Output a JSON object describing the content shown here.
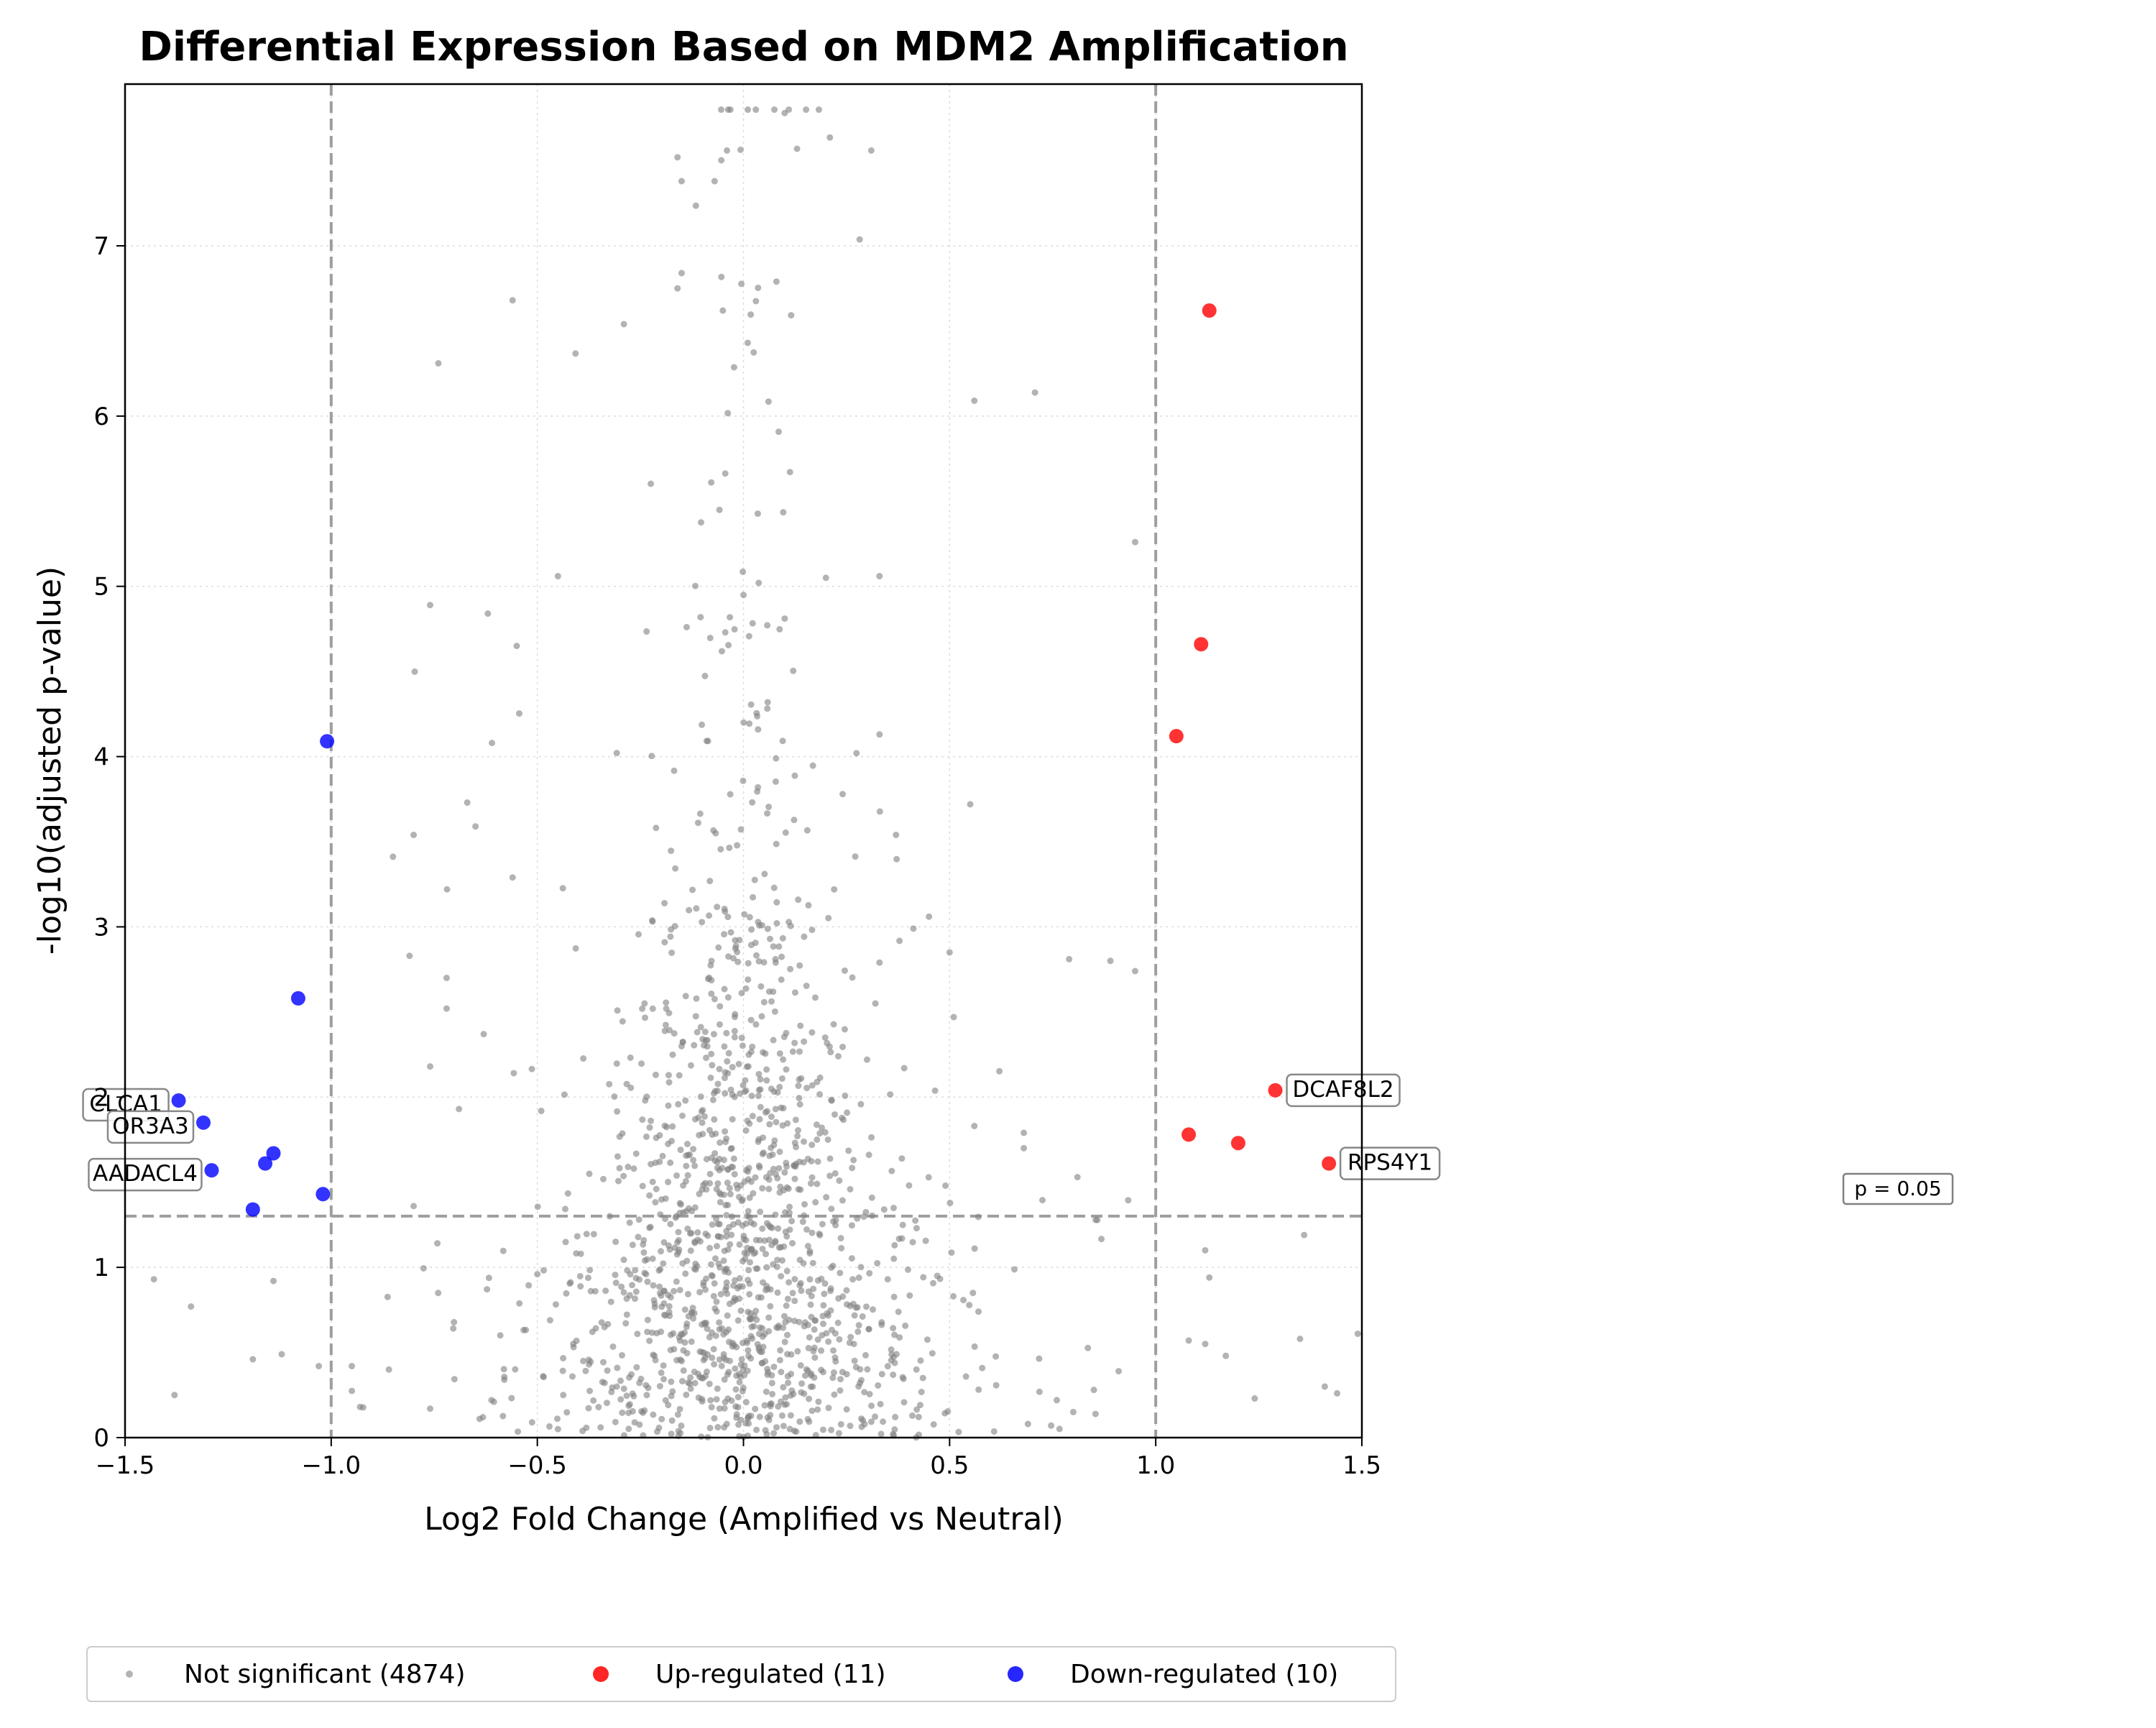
{
  "chart_data": {
    "type": "scatter",
    "title": "Differential Expression Based on MDM2 Amplification",
    "xlabel": "Log2 Fold Change (Amplified vs Neutral)",
    "ylabel": "-log10(adjusted p-value)",
    "xlim": [
      -1.5,
      1.5
    ],
    "ylim": [
      0,
      7.95
    ],
    "xticks": [
      -1.5,
      -1.0,
      -0.5,
      0.0,
      0.5,
      1.0,
      1.5
    ],
    "xtick_labels": [
      "−1.5",
      "−1.0",
      "−0.5",
      "0.0",
      "0.5",
      "1.0",
      "1.5"
    ],
    "yticks": [
      0,
      1,
      2,
      3,
      4,
      5,
      6,
      7
    ],
    "ytick_labels": [
      "0",
      "1",
      "2",
      "3",
      "4",
      "5",
      "6",
      "7"
    ],
    "grid": true,
    "legend_position": "bottom",
    "thresholds": {
      "fold_change": [
        -1.0,
        1.0
      ],
      "pvalue_line_y": 1.301,
      "pvalue_label": "p = 0.05"
    },
    "series": [
      {
        "name": "Not significant (4874)",
        "color": "#808080",
        "count": 4874,
        "points_description": "dense volcano-shaped cloud centered on x=0; representative subset drawn",
        "points": [
          {
            "x": -0.56,
            "y": 6.68
          },
          {
            "x": -0.74,
            "y": 6.31
          },
          {
            "x": -0.29,
            "y": 6.54
          },
          {
            "x": -0.16,
            "y": 6.75
          },
          {
            "x": -0.15,
            "y": 6.84
          },
          {
            "x": -0.05,
            "y": 6.62
          },
          {
            "x": 0.08,
            "y": 6.79
          },
          {
            "x": 0.56,
            "y": 6.09
          },
          {
            "x": -0.15,
            "y": 7.38
          },
          {
            "x": -0.07,
            "y": 7.38
          },
          {
            "x": 0.31,
            "y": 7.56
          },
          {
            "x": -0.16,
            "y": 7.52
          },
          {
            "x": 0.13,
            "y": 7.57
          },
          {
            "x": 0.03,
            "y": 7.8
          },
          {
            "x": 0.1,
            "y": 7.78
          },
          {
            "x": -0.04,
            "y": 7.56
          },
          {
            "x": 0.95,
            "y": 5.26
          },
          {
            "x": 0.2,
            "y": 5.05
          },
          {
            "x": 0.33,
            "y": 5.06
          },
          {
            "x": -0.76,
            "y": 4.89
          },
          {
            "x": -0.62,
            "y": 4.84
          },
          {
            "x": -0.45,
            "y": 5.06
          },
          {
            "x": -0.55,
            "y": 4.65
          },
          {
            "x": 0.33,
            "y": 4.13
          },
          {
            "x": -0.61,
            "y": 4.08
          },
          {
            "x": 0.55,
            "y": 3.72
          },
          {
            "x": -0.8,
            "y": 3.54
          },
          {
            "x": -0.65,
            "y": 3.59
          },
          {
            "x": -0.67,
            "y": 3.73
          },
          {
            "x": 0.37,
            "y": 3.54
          },
          {
            "x": 0.22,
            "y": 3.22
          },
          {
            "x": -0.56,
            "y": 3.29
          },
          {
            "x": 0.45,
            "y": 3.06
          },
          {
            "x": 0.5,
            "y": 2.85
          },
          {
            "x": -0.81,
            "y": 2.83
          },
          {
            "x": 0.89,
            "y": 2.8
          },
          {
            "x": 0.79,
            "y": 2.81
          },
          {
            "x": 0.95,
            "y": 2.74
          },
          {
            "x": 0.33,
            "y": 2.79
          },
          {
            "x": -0.72,
            "y": 2.7
          },
          {
            "x": -0.72,
            "y": 2.52
          },
          {
            "x": 0.32,
            "y": 2.55
          },
          {
            "x": -0.63,
            "y": 2.37
          },
          {
            "x": 0.51,
            "y": 2.47
          },
          {
            "x": -0.76,
            "y": 2.18
          },
          {
            "x": 0.23,
            "y": 2.24
          },
          {
            "x": 0.39,
            "y": 2.17
          },
          {
            "x": -0.69,
            "y": 1.93
          },
          {
            "x": 0.56,
            "y": 1.83
          },
          {
            "x": 0.68,
            "y": 1.79
          },
          {
            "x": 0.68,
            "y": 1.7
          },
          {
            "x": 0.81,
            "y": 1.53
          },
          {
            "x": 0.49,
            "y": 1.48
          },
          {
            "x": -0.8,
            "y": 1.36
          },
          {
            "x": 1.36,
            "y": 1.19
          },
          {
            "x": 1.12,
            "y": 1.1
          },
          {
            "x": 1.13,
            "y": 0.94
          },
          {
            "x": -1.43,
            "y": 0.93
          },
          {
            "x": -1.34,
            "y": 0.77
          },
          {
            "x": -1.14,
            "y": 0.92
          },
          {
            "x": -1.12,
            "y": 0.49
          },
          {
            "x": -1.19,
            "y": 0.46
          },
          {
            "x": -1.38,
            "y": 0.25
          },
          {
            "x": -1.03,
            "y": 0.42
          },
          {
            "x": -0.95,
            "y": 0.42
          },
          {
            "x": 0.91,
            "y": 0.39
          },
          {
            "x": 1.08,
            "y": 0.57
          },
          {
            "x": 1.12,
            "y": 0.55
          },
          {
            "x": 1.24,
            "y": 0.23
          },
          {
            "x": 1.35,
            "y": 0.58
          },
          {
            "x": 1.41,
            "y": 0.3
          },
          {
            "x": 1.44,
            "y": 0.26
          },
          {
            "x": 1.49,
            "y": 0.61
          },
          {
            "x": 1.17,
            "y": 0.48
          },
          {
            "x": 0.8,
            "y": 0.15
          },
          {
            "x": 0.69,
            "y": 0.08
          },
          {
            "x": 0.76,
            "y": 0.22
          },
          {
            "x": 0.85,
            "y": 0.28
          },
          {
            "x": -0.93,
            "y": 0.18
          },
          {
            "x": -0.86,
            "y": 0.4
          },
          {
            "x": -0.76,
            "y": 0.17
          },
          {
            "x": -0.64,
            "y": 0.11
          },
          {
            "x": -0.58,
            "y": 0.34
          },
          {
            "x": -0.45,
            "y": 0.05
          },
          {
            "x": 0.28,
            "y": 0.66
          },
          {
            "x": 0.35,
            "y": 0.93
          },
          {
            "x": 0.47,
            "y": 0.95
          },
          {
            "x": 0.57,
            "y": 0.74
          },
          {
            "x": -0.37,
            "y": 0.86
          },
          {
            "x": -0.5,
            "y": 0.96
          },
          {
            "x": -0.31,
            "y": 1.15
          },
          {
            "x": 0.42,
            "y": 1.23
          },
          {
            "x": -0.28,
            "y": 1.59
          },
          {
            "x": 0.19,
            "y": 1.82
          },
          {
            "x": -0.24,
            "y": 2.55
          },
          {
            "x": 0.14,
            "y": 2.11
          }
        ]
      },
      {
        "name": "Up-regulated (11)",
        "color": "#ff0000",
        "count": 11,
        "points": [
          {
            "x": 1.13,
            "y": 6.62
          },
          {
            "x": 1.11,
            "y": 4.66
          },
          {
            "x": 1.05,
            "y": 4.12
          },
          {
            "x": 1.29,
            "y": 2.04
          },
          {
            "x": 1.08,
            "y": 1.78
          },
          {
            "x": 1.2,
            "y": 1.73
          },
          {
            "x": 1.42,
            "y": 1.61
          }
        ]
      },
      {
        "name": "Down-regulated (10)",
        "color": "#0000ff",
        "count": 10,
        "points": [
          {
            "x": -1.01,
            "y": 4.09
          },
          {
            "x": -1.08,
            "y": 2.58
          },
          {
            "x": -1.37,
            "y": 1.98
          },
          {
            "x": -1.31,
            "y": 1.85
          },
          {
            "x": -1.14,
            "y": 1.67
          },
          {
            "x": -1.16,
            "y": 1.61
          },
          {
            "x": -1.29,
            "y": 1.57
          },
          {
            "x": -1.02,
            "y": 1.43
          },
          {
            "x": -1.19,
            "y": 1.34
          }
        ]
      }
    ],
    "annotations": [
      {
        "text": "DCAF8L2",
        "x": 1.29,
        "y": 2.04,
        "side": "right"
      },
      {
        "text": "RPS4Y1",
        "x": 1.42,
        "y": 1.61,
        "side": "right"
      },
      {
        "text": "CLCA1",
        "x": -1.37,
        "y": 1.98,
        "side": "left"
      },
      {
        "text": "OR3A3",
        "x": -1.31,
        "y": 1.85,
        "side": "left"
      },
      {
        "text": "AADACL4",
        "x": -1.29,
        "y": 1.57,
        "side": "left"
      }
    ]
  }
}
